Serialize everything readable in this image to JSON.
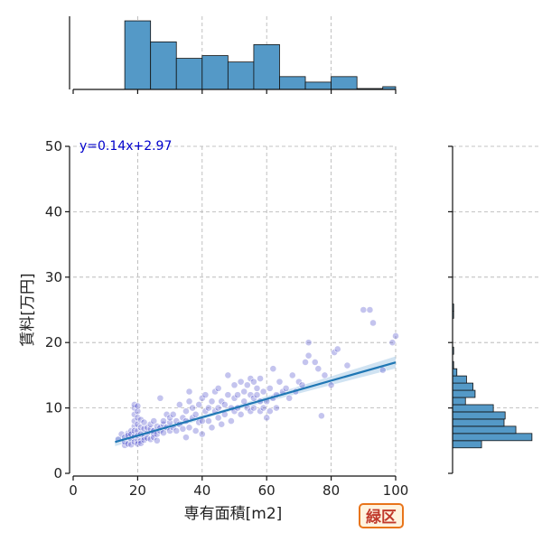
{
  "badge": {
    "label": "緑区"
  },
  "colors": {
    "scatter": "#3c3cc8",
    "line": "#1f77b4",
    "ci_band": "#a9cce8",
    "hist_fill": "#5499c7",
    "equation": "#0000cc",
    "grid": "#b0b0b0",
    "badge_border": "#e8741a",
    "badge_text": "#c0392b"
  },
  "chart_data": {
    "type": "scatter",
    "title": "",
    "xlabel": "専有面積[m2]",
    "ylabel": "賃料[万円]",
    "xlim": [
      0,
      100
    ],
    "ylim": [
      0,
      50
    ],
    "x_ticks": [
      0,
      20,
      40,
      60,
      80,
      100
    ],
    "y_ticks": [
      0,
      10,
      20,
      30,
      40,
      50
    ],
    "grid": true,
    "regression": {
      "equation": "y=0.14x+2.97",
      "slope": 0.14,
      "intercept": 2.97,
      "x_range": [
        13,
        100
      ]
    },
    "x_histogram": {
      "bin_edges": [
        0,
        8,
        16,
        24,
        32,
        40,
        48,
        56,
        64,
        72,
        80,
        88,
        96,
        100
      ],
      "counts": [
        0,
        0,
        75,
        52,
        34,
        37,
        30,
        49,
        14,
        8,
        14,
        1,
        3
      ],
      "ylim": [
        0,
        80
      ]
    },
    "y_histogram": {
      "bin_edges": [
        3.9,
        5.0,
        6.1,
        7.2,
        8.3,
        9.4,
        10.5,
        11.6,
        12.7,
        13.8,
        14.9,
        16.0,
        17.1,
        18.2,
        19.3,
        20.4,
        21.5,
        22.6,
        23.7,
        24.8,
        25.9
      ],
      "counts": [
        27,
        74,
        59,
        48,
        49,
        38,
        12,
        21,
        19,
        13,
        4,
        1,
        0,
        1,
        0,
        0,
        0,
        0,
        1,
        1
      ],
      "xlim": [
        0,
        80
      ]
    },
    "points": [
      [
        14,
        5.2
      ],
      [
        15,
        6.0
      ],
      [
        16,
        4.3
      ],
      [
        16,
        4.8
      ],
      [
        16,
        5.5
      ],
      [
        17,
        6.1
      ],
      [
        17,
        4.5
      ],
      [
        17,
        5.8
      ],
      [
        18,
        6.5
      ],
      [
        18,
        5.2
      ],
      [
        18,
        4.4
      ],
      [
        18,
        6.0
      ],
      [
        19,
        5.6
      ],
      [
        19,
        7.2
      ],
      [
        19,
        4.8
      ],
      [
        19,
        8.0
      ],
      [
        19,
        9.0
      ],
      [
        19,
        10.0
      ],
      [
        19,
        10.5
      ],
      [
        19,
        6.5
      ],
      [
        20,
        5.0
      ],
      [
        20,
        6.5
      ],
      [
        20,
        7.5
      ],
      [
        20,
        8.5
      ],
      [
        20,
        9.5
      ],
      [
        20,
        10.3
      ],
      [
        20,
        4.5
      ],
      [
        20,
        5.8
      ],
      [
        21,
        6.0
      ],
      [
        21,
        5.0
      ],
      [
        21,
        7.0
      ],
      [
        21,
        8.2
      ],
      [
        21,
        4.6
      ],
      [
        22,
        5.5
      ],
      [
        22,
        6.8
      ],
      [
        22,
        7.8
      ],
      [
        22,
        5.1
      ],
      [
        23,
        6.2
      ],
      [
        23,
        5.4
      ],
      [
        23,
        7.0
      ],
      [
        24,
        6.8
      ],
      [
        24,
        5.2
      ],
      [
        24,
        7.5
      ],
      [
        25,
        6.5
      ],
      [
        25,
        6.0
      ],
      [
        25,
        8.0
      ],
      [
        25,
        5.5
      ],
      [
        26,
        7.2
      ],
      [
        26,
        6.0
      ],
      [
        26,
        5.0
      ],
      [
        27,
        6.5
      ],
      [
        27,
        7.0
      ],
      [
        27,
        11.5
      ],
      [
        28,
        7.5
      ],
      [
        28,
        8.0
      ],
      [
        28,
        6.2
      ],
      [
        29,
        7.0
      ],
      [
        29,
        9.0
      ],
      [
        30,
        7.8
      ],
      [
        30,
        6.5
      ],
      [
        30,
        8.5
      ],
      [
        31,
        7.0
      ],
      [
        31,
        9.0
      ],
      [
        32,
        8.0
      ],
      [
        32,
        6.5
      ],
      [
        33,
        10.5
      ],
      [
        33,
        7.5
      ],
      [
        34,
        8.5
      ],
      [
        34,
        6.8
      ],
      [
        35,
        5.5
      ],
      [
        35,
        8.0
      ],
      [
        35,
        9.5
      ],
      [
        36,
        12.5
      ],
      [
        36,
        11.0
      ],
      [
        36,
        7.0
      ],
      [
        37,
        8.5
      ],
      [
        37,
        10.0
      ],
      [
        38,
        6.5
      ],
      [
        38,
        9.0
      ],
      [
        39,
        10.5
      ],
      [
        39,
        7.8
      ],
      [
        40,
        8.0
      ],
      [
        40,
        11.5
      ],
      [
        40,
        6.0
      ],
      [
        41,
        9.5
      ],
      [
        41,
        12.0
      ],
      [
        42,
        10.0
      ],
      [
        42,
        8.0
      ],
      [
        43,
        11.0
      ],
      [
        43,
        7.0
      ],
      [
        44,
        12.5
      ],
      [
        44,
        9.5
      ],
      [
        45,
        10.0
      ],
      [
        45,
        8.5
      ],
      [
        45,
        13.0
      ],
      [
        46,
        11.0
      ],
      [
        46,
        7.5
      ],
      [
        47,
        10.5
      ],
      [
        47,
        9.0
      ],
      [
        48,
        12.0
      ],
      [
        48,
        15.0
      ],
      [
        49,
        10.0
      ],
      [
        49,
        8.0
      ],
      [
        50,
        11.5
      ],
      [
        50,
        9.5
      ],
      [
        50,
        13.5
      ],
      [
        51,
        12.0
      ],
      [
        51,
        10.0
      ],
      [
        52,
        14.0
      ],
      [
        52,
        9.0
      ],
      [
        53,
        12.5
      ],
      [
        53,
        11.0
      ],
      [
        54,
        13.5
      ],
      [
        54,
        10.0
      ],
      [
        55,
        14.5
      ],
      [
        55,
        12.0
      ],
      [
        55,
        9.5
      ],
      [
        56,
        14.0
      ],
      [
        56,
        11.5
      ],
      [
        56,
        10.0
      ],
      [
        57,
        13.0
      ],
      [
        57,
        12.0
      ],
      [
        58,
        14.5
      ],
      [
        58,
        9.5
      ],
      [
        58,
        11.0
      ],
      [
        59,
        10.0
      ],
      [
        59,
        12.5
      ],
      [
        60,
        11.0
      ],
      [
        60,
        8.5
      ],
      [
        61,
        13.0
      ],
      [
        61,
        9.5
      ],
      [
        62,
        16.0
      ],
      [
        62,
        11.5
      ],
      [
        63,
        12.0
      ],
      [
        63,
        10.0
      ],
      [
        64,
        14.0
      ],
      [
        65,
        12.5
      ],
      [
        66,
        13.0
      ],
      [
        67,
        11.5
      ],
      [
        68,
        15.0
      ],
      [
        69,
        12.5
      ],
      [
        70,
        14.0
      ],
      [
        71,
        13.5
      ],
      [
        72,
        17.0
      ],
      [
        73,
        18.0
      ],
      [
        73,
        20.0
      ],
      [
        75,
        17.0
      ],
      [
        76,
        16.0
      ],
      [
        77,
        8.8
      ],
      [
        78,
        15.0
      ],
      [
        80,
        13.5
      ],
      [
        81,
        18.5
      ],
      [
        82,
        19.0
      ],
      [
        85,
        16.5
      ],
      [
        90,
        25.0
      ],
      [
        92,
        25.0
      ],
      [
        93,
        23.0
      ],
      [
        96,
        15.8
      ],
      [
        99,
        20.0
      ],
      [
        100,
        21.0
      ]
    ]
  }
}
